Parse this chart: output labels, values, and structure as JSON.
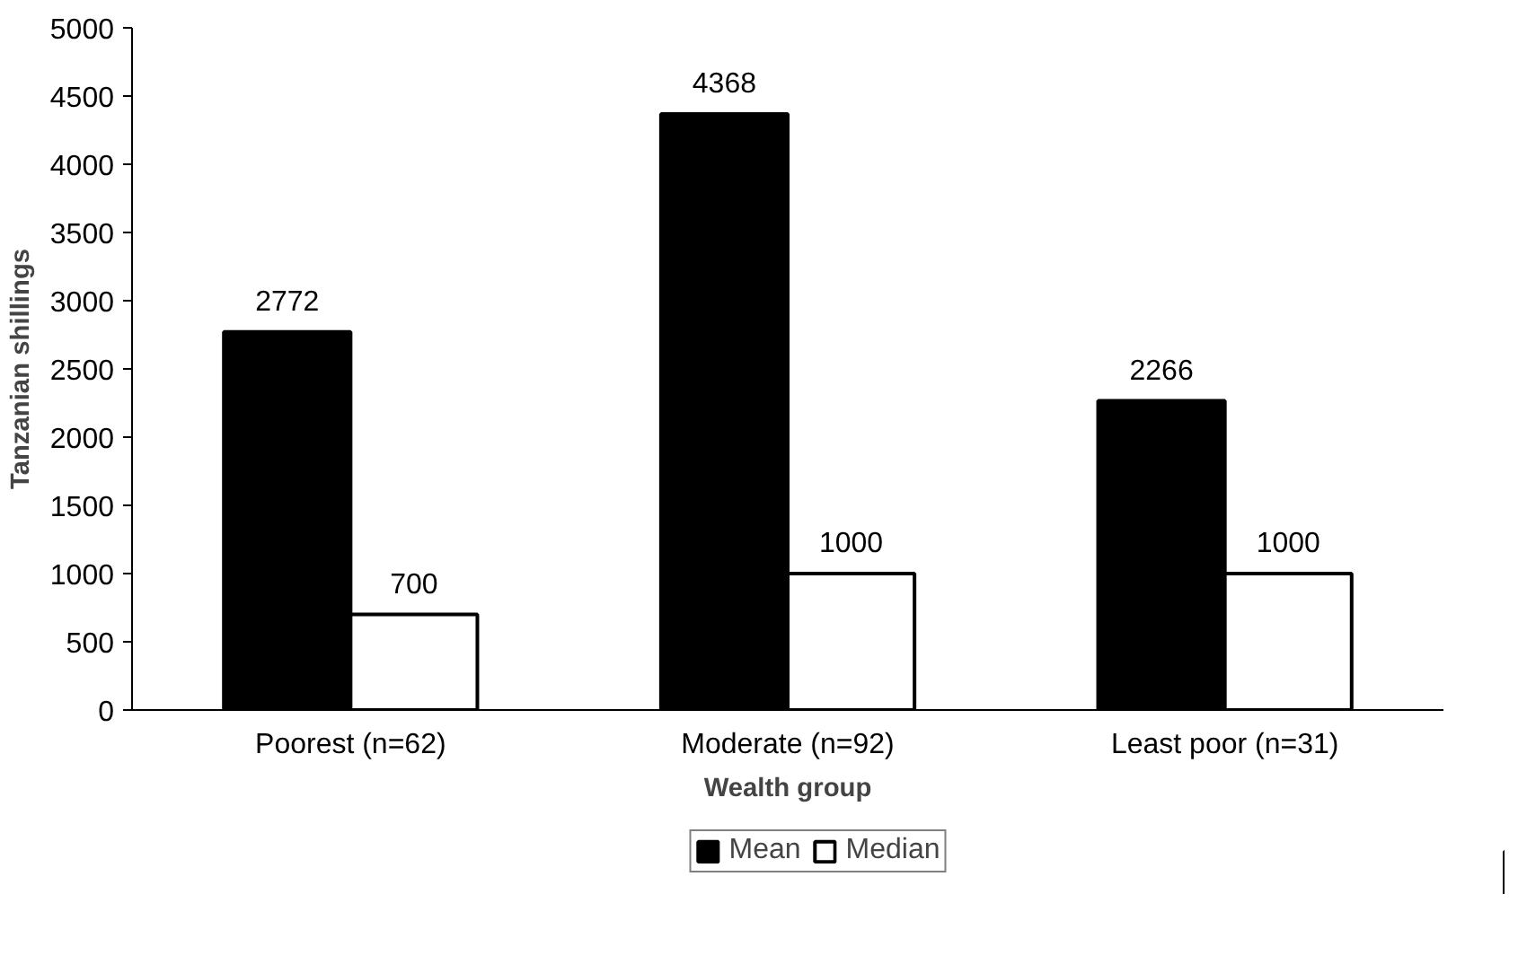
{
  "chart_data": {
    "type": "bar",
    "xlabel": "Wealth group",
    "ylabel": "Tanzanian shillings",
    "categories": [
      "Poorest (n=62)",
      "Moderate (n=92)",
      "Least poor (n=31)"
    ],
    "series": [
      {
        "name": "Mean",
        "color": "#000000",
        "values": [
          2772,
          4368,
          2266
        ]
      },
      {
        "name": "Median",
        "color": "#ffffff",
        "values": [
          700,
          1000,
          1000
        ]
      }
    ],
    "ylim": [
      0,
      5000
    ],
    "yticks": [
      0,
      500,
      1000,
      1500,
      2000,
      2500,
      3000,
      3500,
      4000,
      4500,
      5000
    ],
    "grid": false,
    "legend": "bottom",
    "data_labels": true
  }
}
